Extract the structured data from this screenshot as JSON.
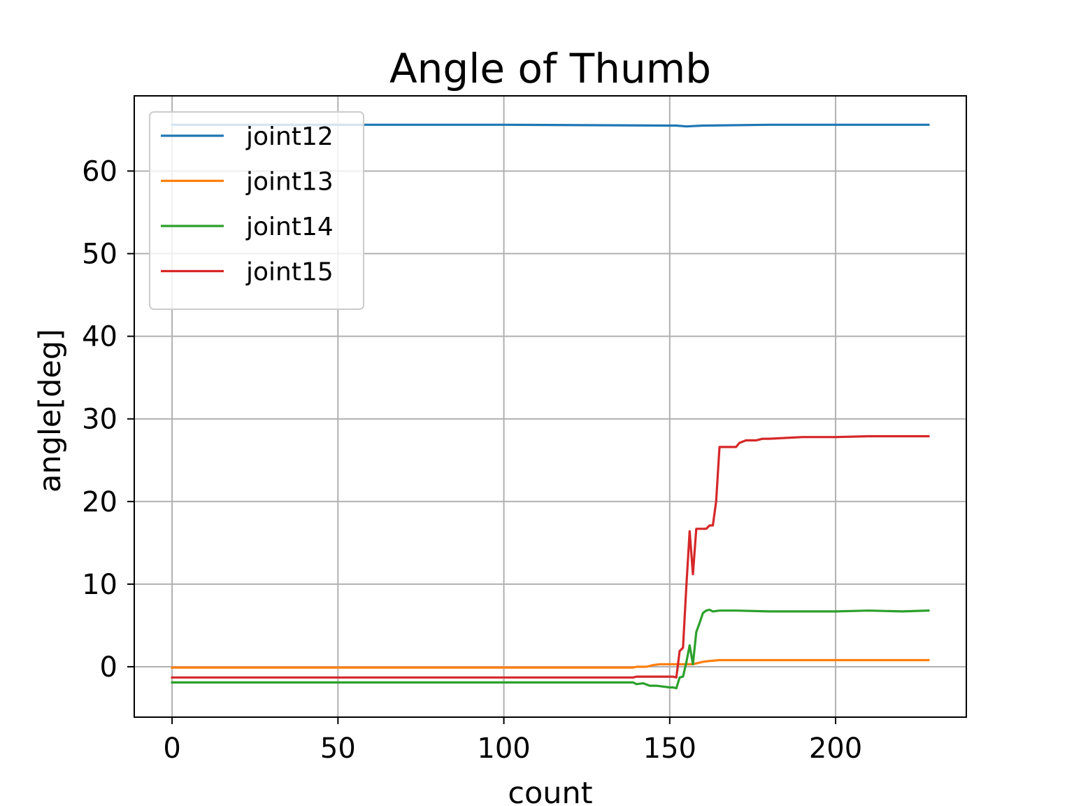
{
  "chart_data": {
    "type": "line",
    "title": "Angle of Thumb",
    "xlabel": "count",
    "ylabel": "angle[deg]",
    "xlim": [
      -11.4,
      239.4
    ],
    "ylim": [
      -6.1,
      69.1
    ],
    "xticks": [
      0,
      50,
      100,
      150,
      200
    ],
    "yticks": [
      0,
      10,
      20,
      30,
      40,
      50,
      60
    ],
    "grid": true,
    "legend_position": "upper-left",
    "series": [
      {
        "name": "joint12",
        "color": "#1f77b4",
        "points": [
          [
            0,
            65.6
          ],
          [
            50,
            65.6
          ],
          [
            100,
            65.6
          ],
          [
            150,
            65.5
          ],
          [
            152,
            65.5
          ],
          [
            155,
            65.4
          ],
          [
            160,
            65.5
          ],
          [
            180,
            65.6
          ],
          [
            200,
            65.6
          ],
          [
            228,
            65.6
          ]
        ]
      },
      {
        "name": "joint13",
        "color": "#ff7f0e",
        "points": [
          [
            0,
            -0.1
          ],
          [
            50,
            -0.1
          ],
          [
            100,
            -0.1
          ],
          [
            139,
            -0.1
          ],
          [
            140,
            0.0
          ],
          [
            143,
            0.0
          ],
          [
            145,
            0.2
          ],
          [
            147,
            0.3
          ],
          [
            150,
            0.3
          ],
          [
            153,
            0.3
          ],
          [
            156,
            0.3
          ],
          [
            157,
            0.3
          ],
          [
            158,
            0.4
          ],
          [
            160,
            0.6
          ],
          [
            162,
            0.7
          ],
          [
            165,
            0.8
          ],
          [
            170,
            0.8
          ],
          [
            180,
            0.8
          ],
          [
            200,
            0.8
          ],
          [
            215,
            0.8
          ],
          [
            228,
            0.8
          ]
        ]
      },
      {
        "name": "joint14",
        "color": "#2ca02c",
        "points": [
          [
            0,
            -1.9
          ],
          [
            50,
            -1.9
          ],
          [
            100,
            -1.9
          ],
          [
            139,
            -1.9
          ],
          [
            140,
            -2.1
          ],
          [
            142,
            -2.0
          ],
          [
            144,
            -2.3
          ],
          [
            146,
            -2.3
          ],
          [
            148,
            -2.4
          ],
          [
            150,
            -2.5
          ],
          [
            151,
            -2.5
          ],
          [
            152,
            -2.6
          ],
          [
            153,
            -1.3
          ],
          [
            154,
            -1.2
          ],
          [
            155,
            0.5
          ],
          [
            156,
            2.6
          ],
          [
            157,
            0.3
          ],
          [
            158,
            4.2
          ],
          [
            159,
            5.3
          ],
          [
            160,
            6.5
          ],
          [
            161,
            6.8
          ],
          [
            162,
            6.9
          ],
          [
            163,
            6.7
          ],
          [
            165,
            6.8
          ],
          [
            170,
            6.8
          ],
          [
            180,
            6.7
          ],
          [
            190,
            6.7
          ],
          [
            200,
            6.7
          ],
          [
            210,
            6.8
          ],
          [
            220,
            6.7
          ],
          [
            228,
            6.8
          ]
        ]
      },
      {
        "name": "joint15",
        "color": "#d62728",
        "points": [
          [
            0,
            -1.3
          ],
          [
            50,
            -1.3
          ],
          [
            100,
            -1.3
          ],
          [
            139,
            -1.3
          ],
          [
            140,
            -1.2
          ],
          [
            150,
            -1.2
          ],
          [
            151,
            -1.2
          ],
          [
            152,
            -1.3
          ],
          [
            153,
            1.9
          ],
          [
            154,
            2.3
          ],
          [
            155,
            9.6
          ],
          [
            156,
            16.4
          ],
          [
            157,
            11.2
          ],
          [
            158,
            16.7
          ],
          [
            160,
            16.7
          ],
          [
            161,
            16.7
          ],
          [
            162,
            17.1
          ],
          [
            163,
            17.1
          ],
          [
            164,
            20.0
          ],
          [
            165,
            26.6
          ],
          [
            166,
            26.6
          ],
          [
            170,
            26.6
          ],
          [
            171,
            27.1
          ],
          [
            173,
            27.4
          ],
          [
            176,
            27.4
          ],
          [
            178,
            27.6
          ],
          [
            180,
            27.6
          ],
          [
            185,
            27.7
          ],
          [
            190,
            27.8
          ],
          [
            200,
            27.8
          ],
          [
            210,
            27.9
          ],
          [
            220,
            27.9
          ],
          [
            228,
            27.9
          ]
        ]
      }
    ]
  }
}
